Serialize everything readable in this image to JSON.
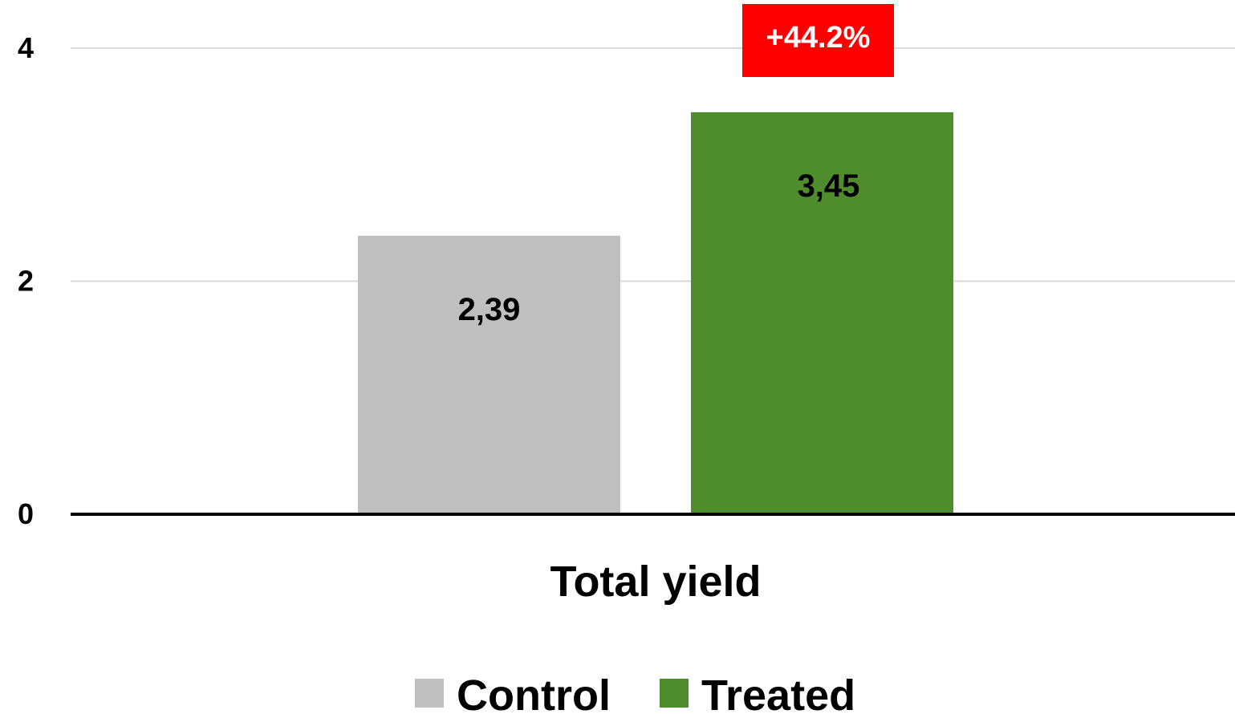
{
  "chart_data": {
    "type": "bar",
    "categories": [
      "Total yield"
    ],
    "series": [
      {
        "name": "Control",
        "values": [
          2.39
        ],
        "label": "2,39",
        "color": "#bfbfbf"
      },
      {
        "name": "Treated",
        "values": [
          3.45
        ],
        "label": "3,45",
        "color": "#4e8c2c"
      }
    ],
    "ylim": [
      0,
      4
    ],
    "yticks": [
      0,
      2,
      4
    ],
    "grid": true,
    "legend_position": "bottom",
    "annotation": {
      "text": "+44.2%",
      "series": "Treated",
      "color": "#ff0000"
    }
  }
}
